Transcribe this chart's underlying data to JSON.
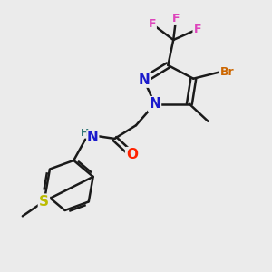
{
  "bg_color": "#ebebeb",
  "bond_color": "#1a1a1a",
  "bond_width": 1.8,
  "atom_colors": {
    "N": "#1a1acc",
    "O": "#ff2200",
    "Br": "#cc6600",
    "F": "#dd44bb",
    "S": "#bbbb00",
    "C": "#1a1a1a",
    "H": "#337777"
  },
  "font_size_main": 11,
  "font_size_small": 9,
  "font_size_label": 10
}
